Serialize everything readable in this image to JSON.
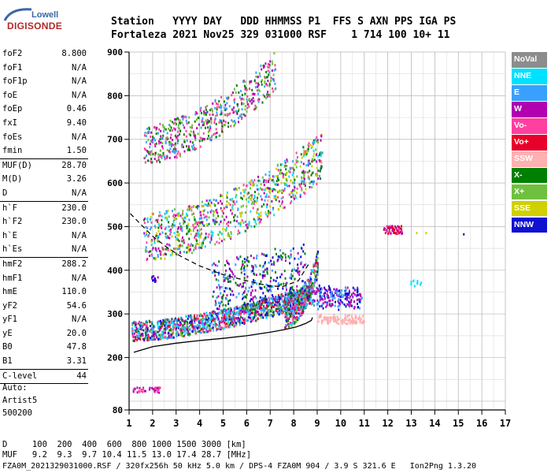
{
  "logo": {
    "line1": "Lowell",
    "line2": "DIGISONDE"
  },
  "header": {
    "line1": "Station   YYYY DAY   DDD HHMMSS P1  FFS S AXN PPS IGA PS",
    "line2": "Fortaleza 2021 Nov25 329 031000 RSF    1 714 100 10+ 11"
  },
  "params": [
    {
      "name": "foF2",
      "value": "8.800"
    },
    {
      "name": "foF1",
      "value": "N/A"
    },
    {
      "name": "foF1p",
      "value": "N/A"
    },
    {
      "name": "foE",
      "value": "N/A"
    },
    {
      "name": "foEp",
      "value": "0.46"
    },
    {
      "name": "fxI",
      "value": "9.40"
    },
    {
      "name": "foEs",
      "value": "N/A"
    },
    {
      "name": "fmin",
      "value": "1.50"
    },
    {
      "sep": true
    },
    {
      "name": "MUF(D)",
      "value": "28.70"
    },
    {
      "name": "M(D)",
      "value": "3.26"
    },
    {
      "name": "D",
      "value": "N/A"
    },
    {
      "sep": true
    },
    {
      "name": "h`F",
      "value": "230.0"
    },
    {
      "name": "h`F2",
      "value": "230.0"
    },
    {
      "name": "h`E",
      "value": "N/A"
    },
    {
      "name": "h`Es",
      "value": "N/A"
    },
    {
      "sep": true
    },
    {
      "name": "hmF2",
      "value": "288.2"
    },
    {
      "name": "hmF1",
      "value": "N/A"
    },
    {
      "name": "hmE",
      "value": "110.0"
    },
    {
      "name": "yF2",
      "value": "54.6"
    },
    {
      "name": "yF1",
      "value": "N/A"
    },
    {
      "name": "yE",
      "value": "20.0"
    },
    {
      "name": "B0",
      "value": "47.8"
    },
    {
      "name": "B1",
      "value": "3.31"
    },
    {
      "sep": true
    },
    {
      "name": "C-level",
      "value": "44"
    },
    {
      "sep": true
    }
  ],
  "auto": {
    "line1": "Auto:",
    "line2": "Artist5",
    "line3": "500200"
  },
  "legend": [
    {
      "label": "NoVal",
      "color": "#8c8c8c"
    },
    {
      "label": "NNE",
      "color": "#00e0ff"
    },
    {
      "label": "E",
      "color": "#3aa0ff"
    },
    {
      "label": "W",
      "color": "#b000b0"
    },
    {
      "label": "Vo-",
      "color": "#ff40a0"
    },
    {
      "label": "Vo+",
      "color": "#e8002a"
    },
    {
      "label": "SSW",
      "color": "#ffb0b0"
    },
    {
      "label": "X-",
      "color": "#008000"
    },
    {
      "label": "X+",
      "color": "#70c040"
    },
    {
      "label": "SSE",
      "color": "#d0d000"
    },
    {
      "label": "NNW",
      "color": "#1010d0"
    }
  ],
  "chart_data": {
    "type": "scatter",
    "x_ticks": [
      "1",
      "2",
      "3",
      "4",
      "5",
      "6",
      "7",
      "8",
      "9",
      "10",
      "11",
      "12",
      "13",
      "14",
      "15",
      "16",
      "17"
    ],
    "y_ticks": [
      "80",
      "200",
      "300",
      "400",
      "500",
      "600",
      "700",
      "800",
      "900"
    ],
    "xlim": [
      1,
      17
    ],
    "ylim": [
      80,
      900
    ],
    "grid": true,
    "traces": {
      "profile_solid": {
        "x": [
          1.2,
          2,
          3,
          4,
          5,
          6,
          7,
          7.6,
          8.1,
          8.5,
          8.75,
          8.8
        ],
        "y": [
          212,
          225,
          233,
          239,
          244,
          250,
          258,
          264,
          270,
          278,
          285,
          292
        ]
      },
      "profile_dashed": {
        "x": [
          1.05,
          1.5,
          2,
          2.6,
          3.2,
          4,
          5,
          6,
          6.8,
          7.5,
          8.2,
          8.7
        ],
        "y": [
          530,
          505,
          478,
          453,
          432,
          410,
          390,
          376,
          366,
          362,
          376,
          420
        ]
      }
    }
  },
  "footer": {
    "d_line": "D     100  200  400  600  800 1000 1500 3000 [km]",
    "muf_line": "MUF   9.2  9.3  9.7 10.4 11.5 13.0 17.4 28.7 [MHz]",
    "info_line": "FZA0M_2021329031000.RSF / 320fx256h 50 kHz 5.0 km / DPS-4 FZA0M 904 / 3.9 S 321.6 E   Ion2Png 1.3.20"
  }
}
